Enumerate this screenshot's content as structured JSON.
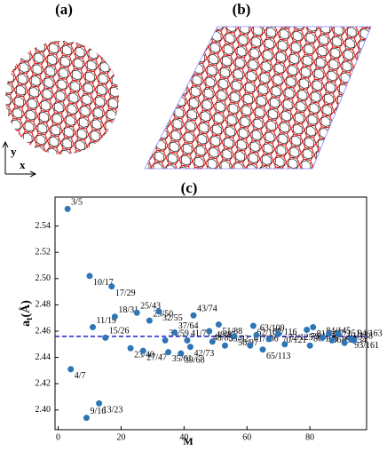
{
  "panel_labels": [
    "(a)",
    "(b)",
    "(c)"
  ],
  "axis_arrows": {
    "x": "x",
    "y": "y"
  },
  "chart_data": {
    "type": "scatter",
    "xlabel": "M",
    "ylabel": "a",
    "ylabel_sub": "t",
    "ylabel_unit": "(Å)",
    "color": "#2e75b6",
    "labels": [
      "3/5",
      "4/7",
      "9/16",
      "10/17",
      "11/19",
      "13/23",
      "15/26",
      "17/29",
      "18/31",
      "23/40",
      "25/43",
      "27/47",
      "29/50",
      "32/55",
      "34/59",
      "35/61",
      "37/64",
      "39/68",
      "41/71",
      "42/73",
      "43/74",
      "48/83",
      "49/85",
      "51/88",
      "53/92",
      "56/97",
      "61/106",
      "62/107",
      "63/109",
      "65/113",
      "67/116",
      "70/121",
      "72/125",
      "79/137",
      "80/139",
      "81/140",
      "84/145",
      "86/149",
      "87/151",
      "89/154",
      "91/158",
      "93/161",
      "94/163"
    ],
    "x": [
      3,
      4,
      9,
      10,
      11,
      13,
      15,
      17,
      18,
      23,
      25,
      27,
      29,
      32,
      34,
      35,
      37,
      39,
      41,
      42,
      43,
      48,
      49,
      51,
      53,
      56,
      61,
      62,
      63,
      65,
      67,
      70,
      72,
      79,
      80,
      81,
      84,
      86,
      87,
      89,
      91,
      93,
      94
    ],
    "values": [
      2.553,
      2.431,
      2.394,
      2.502,
      2.463,
      2.405,
      2.455,
      2.494,
      2.471,
      2.447,
      2.474,
      2.445,
      2.468,
      2.475,
      2.453,
      2.444,
      2.459,
      2.443,
      2.453,
      2.448,
      2.472,
      2.46,
      2.452,
      2.465,
      2.449,
      2.456,
      2.449,
      2.464,
      2.457,
      2.446,
      2.454,
      2.458,
      2.45,
      2.461,
      2.449,
      2.463,
      2.455,
      2.458,
      2.453,
      2.458,
      2.451,
      2.454,
      2.453
    ],
    "reference_line": {
      "value": 2.456,
      "color": "#1f1fd0"
    },
    "xlim": [
      -1,
      98
    ],
    "xticks": [
      0,
      20,
      40,
      60,
      80
    ],
    "ylim": [
      2.385,
      2.562
    ],
    "yticks": [
      {
        "value": 2.4,
        "label": "2.40"
      },
      2.42,
      2.44,
      2.46,
      2.48,
      {
        "value": 2.5,
        "label": "2.50"
      },
      2.52,
      2.54
    ]
  }
}
